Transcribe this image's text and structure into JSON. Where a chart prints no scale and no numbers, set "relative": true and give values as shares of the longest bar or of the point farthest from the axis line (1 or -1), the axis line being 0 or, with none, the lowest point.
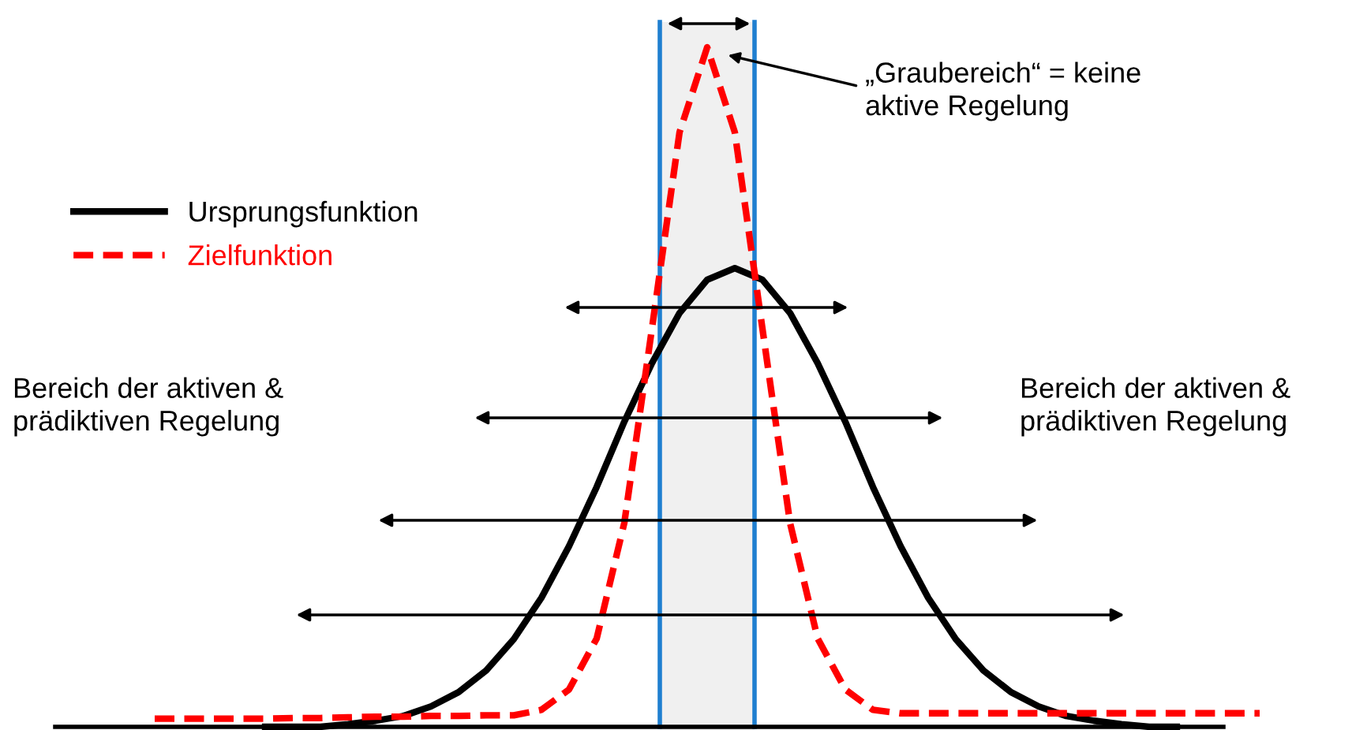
{
  "chart_data": {
    "type": "line",
    "relative": true,
    "categories": [
      null,
      null,
      null,
      null,
      null,
      null,
      null,
      null,
      null,
      null,
      null,
      null,
      null,
      null,
      null,
      null,
      null,
      null,
      null,
      null,
      null,
      null,
      null,
      null,
      null,
      null,
      null,
      null,
      null,
      null,
      null,
      null,
      null,
      null,
      null,
      null,
      null,
      null,
      null,
      null,
      null
    ],
    "series": [
      {
        "name": "Ursprungsfunktion",
        "color": "#000000",
        "line_style": "solid",
        "values": [
          null,
          null,
          null,
          null,
          0,
          0,
          0,
          0.004,
          0.009,
          0.016,
          0.03,
          0.051,
          0.083,
          0.129,
          0.19,
          0.266,
          0.353,
          0.449,
          0.535,
          0.609,
          0.658,
          0.675,
          0.658,
          0.609,
          0.535,
          0.449,
          0.353,
          0.266,
          0.19,
          0.129,
          0.083,
          0.051,
          0.03,
          0.016,
          0.009,
          0.004,
          0,
          0,
          null,
          null,
          null
        ]
      },
      {
        "name": "Zielfunktion",
        "color": "#ff0000",
        "line_style": "dashed",
        "values": [
          0.012,
          0.012,
          0.012,
          0.012,
          0.012,
          0.013,
          0.013,
          0.014,
          0.015,
          0.015,
          0.016,
          0.016,
          0.017,
          0.017,
          0.025,
          0.055,
          0.13,
          0.3,
          0.586,
          0.875,
          1,
          0.875,
          0.586,
          0.3,
          0.13,
          0.055,
          0.025,
          0.02,
          0.02,
          0.02,
          0.02,
          0.02,
          0.02,
          0.02,
          0.02,
          0.02,
          0.02,
          0.02,
          0.02,
          0.02,
          0.02
        ]
      }
    ],
    "legend": "left",
    "annotations": [
      "„Graubereich“ = keine\naktive Regelung",
      "Bereich der aktiven &\nprädiktiven Regelung",
      "Bereich der aktiven &\nprädiktiven Regelung"
    ]
  }
}
